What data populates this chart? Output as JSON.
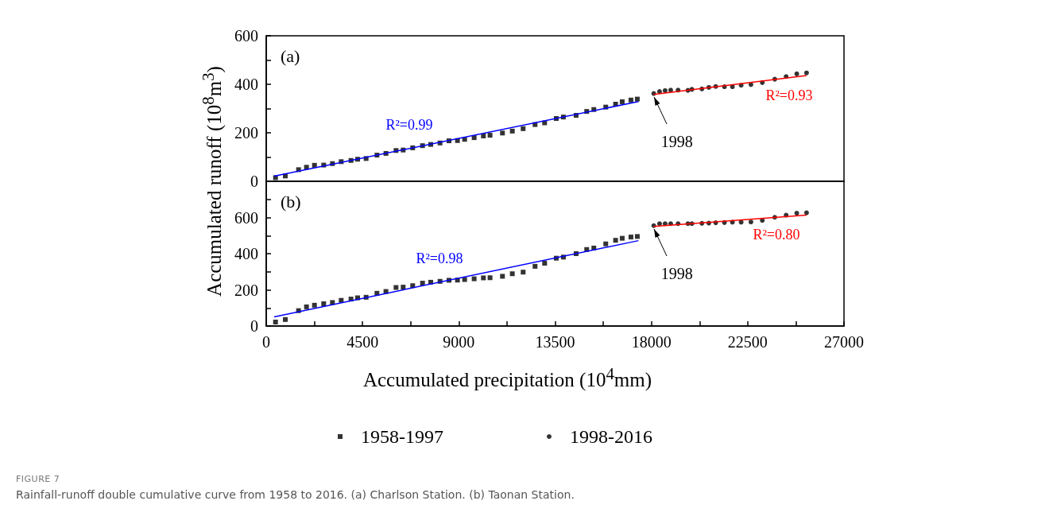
{
  "chart_data": [
    {
      "type": "scatter",
      "title": "(a)",
      "ylabel": "Accumulated runoff (10$^{8}$m$^{3}$)",
      "xlim": [
        0,
        27000
      ],
      "ylim": [
        0,
        600
      ],
      "yticks": [
        0,
        {
          "value": 100,
          "label": null
        },
        200,
        {
          "value": 300,
          "label": null
        },
        400,
        {
          "value": 500,
          "label": null
        },
        600
      ],
      "tick_labels": "y",
      "series": [
        {
          "marker": "square",
          "color": "#000000",
          "x": [
            434,
            891,
            1511,
            1882,
            2254,
            2686,
            3094,
            3503,
            3961,
            4270,
            4667,
            5174,
            5594,
            6066,
            6400,
            6845,
            7304,
            7687,
            8121,
            8541,
            8937,
            9272,
            9717,
            10149,
            10459,
            11040,
            11500,
            12006,
            12563,
            13010,
            13554,
            13888,
            14482,
            14976,
            15310,
            15867,
            16327,
            16636,
            17044,
            17341
          ],
          "values": [
            15,
            22,
            48,
            58,
            66,
            67,
            73,
            81,
            86,
            91,
            94,
            108,
            115,
            127,
            129,
            138,
            147,
            152,
            158,
            167,
            168,
            173,
            180,
            187,
            190,
            199,
            207,
            217,
            234,
            241,
            259,
            265,
            272,
            288,
            296,
            306,
            318,
            328,
            335,
            339
          ]
        },
        {
          "marker": "circle",
          "color": "#000000",
          "x": [
            18110,
            18381,
            18641,
            18901,
            19247,
            19706,
            19892,
            20360,
            20683,
            21006,
            21414,
            21786,
            22194,
            22651,
            23182,
            23765,
            24296,
            24793,
            25250
          ],
          "values": [
            362,
            370,
            374,
            376,
            376,
            375,
            379,
            381,
            387,
            391,
            390,
            390,
            396,
            399,
            407,
            421,
            432,
            443,
            447
          ]
        },
        {
          "type": "line",
          "marker": "none",
          "color": "#0000ff",
          "x": [
            371,
            17391
          ],
          "values": [
            21,
            329
          ]
        },
        {
          "type": "line",
          "marker": "none",
          "color": "#ff0000",
          "x": [
            18110,
            25250
          ],
          "values": [
            358,
            436
          ]
        }
      ],
      "annotations": [
        {
          "text": "R²=0.99",
          "x": 6684,
          "y": 135
        },
        {
          "text": "R²=0.93",
          "x": 24434,
          "y": 427
        },
        {
          "text": "1998",
          "x": 18110,
          "y": 362
        }
      ]
    },
    {
      "type": "scatter",
      "title": "(b)",
      "xlabel": "Accumulated precipitation (10$^{4}$mm)",
      "xlim": [
        0,
        27000
      ],
      "xticks": [
        0,
        {
          "value": 2250,
          "label": null
        },
        4500,
        {
          "value": 6750,
          "label": null
        },
        9000,
        {
          "value": 11250,
          "label": null
        },
        13500,
        {
          "value": 15750,
          "label": null
        },
        18000,
        {
          "value": 20250,
          "label": null
        },
        22500,
        {
          "value": 24750,
          "label": null
        },
        27000
      ],
      "ylim": [
        0,
        800
      ],
      "yticks": [
        0,
        {
          "value": 100,
          "label": null
        },
        200,
        {
          "value": 300,
          "label": null
        },
        400,
        {
          "value": 500,
          "label": null
        },
        600,
        {
          "value": 700,
          "label": null
        }
      ],
      "legend": "bottom",
      "series": [
        {
          "name": "1958-1997",
          "marker": "square",
          "color": "#000000",
          "x": [
            434,
            891,
            1511,
            1882,
            2254,
            2686,
            3094,
            3503,
            3961,
            4270,
            4667,
            5174,
            5594,
            6066,
            6400,
            6845,
            7304,
            7687,
            8121,
            8541,
            8937,
            9272,
            9717,
            10149,
            10459,
            11040,
            11500,
            12006,
            12563,
            13010,
            13554,
            13888,
            14482,
            14976,
            15310,
            15867,
            16327,
            16636,
            17044,
            17341
          ],
          "values": [
            22,
            36,
            85,
            106,
            115,
            123,
            130,
            142,
            149,
            156,
            159,
            181,
            191,
            213,
            215,
            223,
            237,
            242,
            247,
            253,
            254,
            257,
            261,
            266,
            267,
            275,
            289,
            298,
            330,
            347,
            375,
            381,
            400,
            423,
            431,
            454,
            474,
            485,
            492,
            495
          ]
        },
        {
          "name": "1998-2016",
          "marker": "circle",
          "color": "#000000",
          "x": [
            18110,
            18381,
            18641,
            18901,
            19247,
            19706,
            19892,
            20360,
            20683,
            21006,
            21414,
            21786,
            22194,
            22651,
            23182,
            23765,
            24296,
            24793,
            25250
          ],
          "values": [
            555,
            566,
            566,
            566,
            566,
            566,
            566,
            568,
            569,
            571,
            572,
            574,
            574,
            575,
            584,
            601,
            613,
            624,
            626
          ]
        },
        {
          "type": "line",
          "marker": "none",
          "color": "#0000ff",
          "x": [
            371,
            17391
          ],
          "values": [
            51,
            472
          ]
        },
        {
          "type": "line",
          "marker": "none",
          "color": "#ff0000",
          "x": [
            18110,
            25250
          ],
          "values": [
            551,
            613
          ]
        }
      ],
      "annotations": [
        {
          "text": "R²=0.98",
          "x": 8095,
          "y": 242
        },
        {
          "text": "R²=0.80",
          "x": 23840,
          "y": 601
        },
        {
          "text": "1998",
          "x": 18110,
          "y": 555
        },
        "FIGURE 7",
        "Rainfall-runoff double cumulative curve from 1958 to 2016. (a) Charlson Station. (b) Taonan Station."
      ]
    }
  ]
}
